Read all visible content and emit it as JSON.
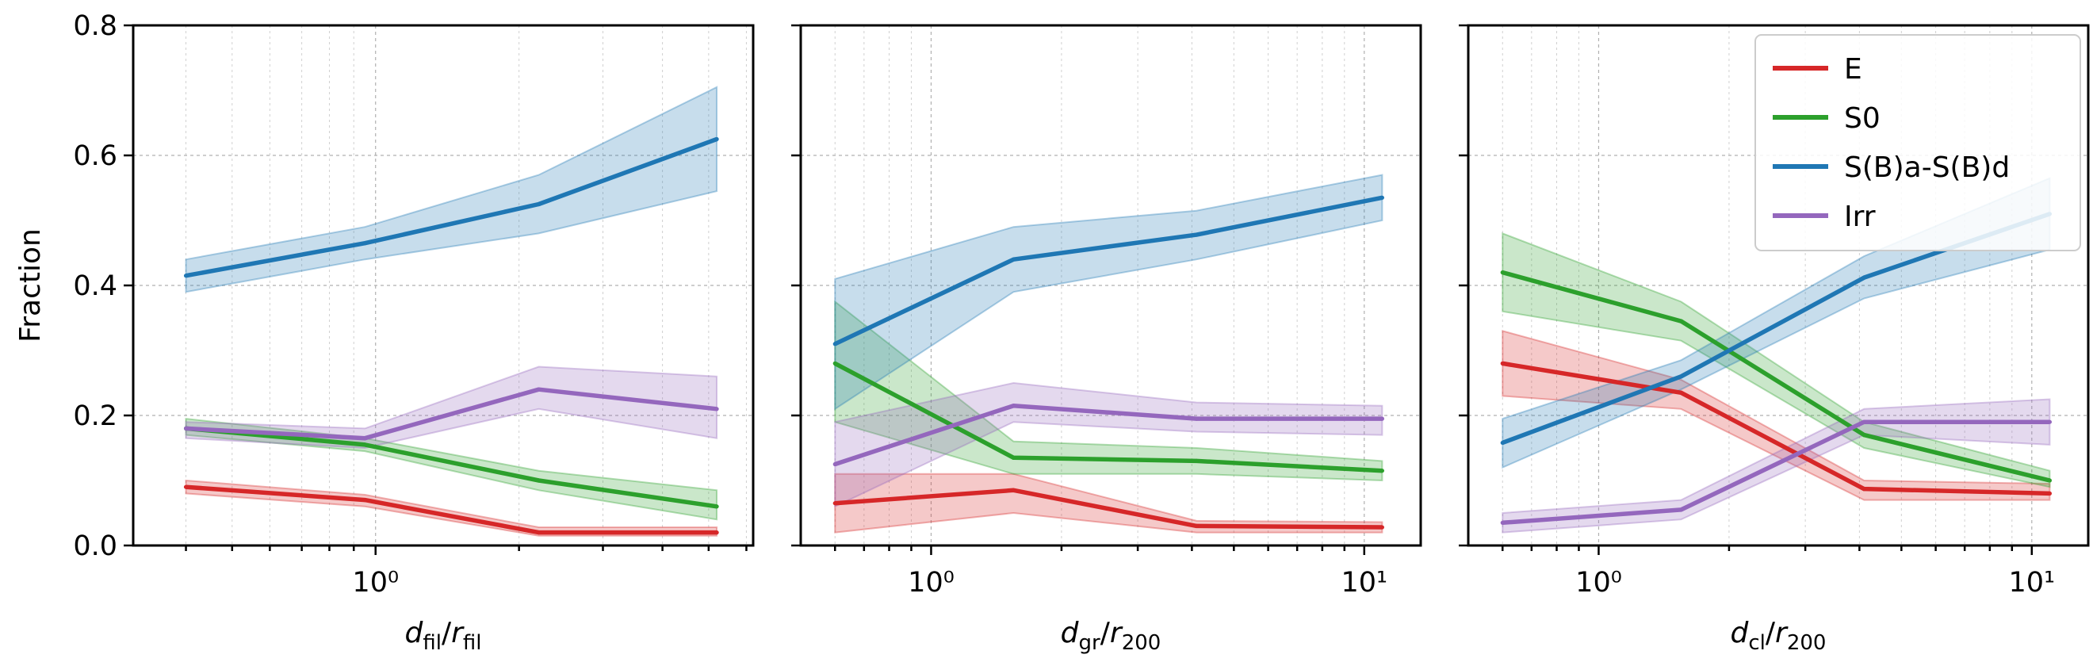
{
  "chart_data": [
    {
      "type": "line",
      "xscale": "log",
      "xlim": [
        0.31,
        6.2
      ],
      "ylim": [
        0.0,
        0.8
      ],
      "xticks": [
        {
          "value": 1,
          "label": "10⁰"
        }
      ],
      "yticks": [
        0.0,
        0.2,
        0.4,
        0.6,
        0.8
      ],
      "ytick_labels": [
        "0.0",
        "0.2",
        "0.4",
        "0.6",
        "0.8"
      ],
      "xlabel": {
        "main": "d",
        "sub": "fil",
        "sep": "/",
        "main2": "r",
        "sub2": "fil"
      },
      "ylabel": "Fraction",
      "x": [
        0.4,
        0.95,
        2.2,
        5.2
      ],
      "series": [
        {
          "name": "E",
          "values": [
            0.09,
            0.07,
            0.02,
            0.02
          ],
          "lower": [
            0.08,
            0.06,
            0.015,
            0.015
          ],
          "upper": [
            0.1,
            0.078,
            0.028,
            0.028
          ]
        },
        {
          "name": "S0",
          "values": [
            0.18,
            0.155,
            0.1,
            0.06
          ],
          "lower": [
            0.17,
            0.145,
            0.085,
            0.04
          ],
          "upper": [
            0.195,
            0.165,
            0.115,
            0.085
          ]
        },
        {
          "name": "S(B)a-S(B)d",
          "values": [
            0.415,
            0.465,
            0.525,
            0.625
          ],
          "lower": [
            0.39,
            0.44,
            0.48,
            0.545
          ],
          "upper": [
            0.44,
            0.49,
            0.57,
            0.705
          ]
        },
        {
          "name": "Irr",
          "values": [
            0.18,
            0.165,
            0.24,
            0.21
          ],
          "lower": [
            0.165,
            0.15,
            0.21,
            0.165
          ],
          "upper": [
            0.19,
            0.18,
            0.275,
            0.26
          ]
        }
      ]
    },
    {
      "type": "line",
      "xscale": "log",
      "xlim": [
        0.5,
        13.5
      ],
      "ylim": [
        0.0,
        0.8
      ],
      "xticks": [
        {
          "value": 1,
          "label": "10⁰"
        },
        {
          "value": 10,
          "label": "10¹"
        }
      ],
      "yticks": [
        0.0,
        0.2,
        0.4,
        0.6,
        0.8
      ],
      "ytick_labels": [],
      "xlabel": {
        "main": "d",
        "sub": "gr",
        "sep": "/",
        "main2": "r",
        "sub2": "200"
      },
      "ylabel": "",
      "x": [
        0.6,
        1.55,
        4.1,
        11.0
      ],
      "series": [
        {
          "name": "E",
          "values": [
            0.065,
            0.085,
            0.03,
            0.028
          ],
          "lower": [
            0.02,
            0.05,
            0.02,
            0.02
          ],
          "upper": [
            0.11,
            0.11,
            0.038,
            0.036
          ]
        },
        {
          "name": "S0",
          "values": [
            0.28,
            0.135,
            0.13,
            0.115
          ],
          "lower": [
            0.19,
            0.11,
            0.11,
            0.1
          ],
          "upper": [
            0.375,
            0.16,
            0.15,
            0.13
          ]
        },
        {
          "name": "S(B)a-S(B)d",
          "values": [
            0.31,
            0.44,
            0.478,
            0.535
          ],
          "lower": [
            0.21,
            0.39,
            0.44,
            0.5
          ],
          "upper": [
            0.41,
            0.49,
            0.515,
            0.57
          ]
        },
        {
          "name": "Irr",
          "values": [
            0.125,
            0.215,
            0.195,
            0.195
          ],
          "lower": [
            0.06,
            0.19,
            0.175,
            0.17
          ],
          "upper": [
            0.19,
            0.25,
            0.22,
            0.215
          ]
        }
      ]
    },
    {
      "type": "line",
      "xscale": "log",
      "xlim": [
        0.5,
        13.5
      ],
      "ylim": [
        0.0,
        0.8
      ],
      "xticks": [
        {
          "value": 1,
          "label": "10⁰"
        },
        {
          "value": 10,
          "label": "10¹"
        }
      ],
      "yticks": [
        0.0,
        0.2,
        0.4,
        0.6,
        0.8
      ],
      "ytick_labels": [],
      "xlabel": {
        "main": "d",
        "sub": "cl",
        "sep": "/",
        "main2": "r",
        "sub2": "200"
      },
      "ylabel": "",
      "x": [
        0.6,
        1.55,
        4.1,
        11.0
      ],
      "legend": {
        "position": "upper-right",
        "entries": [
          "E",
          "S0",
          "S(B)a-S(B)d",
          "Irr"
        ]
      },
      "series": [
        {
          "name": "E",
          "values": [
            0.28,
            0.235,
            0.087,
            0.08
          ],
          "lower": [
            0.23,
            0.21,
            0.07,
            0.07
          ],
          "upper": [
            0.33,
            0.255,
            0.1,
            0.095
          ]
        },
        {
          "name": "S0",
          "values": [
            0.42,
            0.345,
            0.17,
            0.1
          ],
          "lower": [
            0.36,
            0.315,
            0.15,
            0.09
          ],
          "upper": [
            0.48,
            0.375,
            0.19,
            0.115
          ]
        },
        {
          "name": "S(B)a-S(B)d",
          "values": [
            0.158,
            0.26,
            0.412,
            0.51
          ],
          "lower": [
            0.12,
            0.24,
            0.38,
            0.455
          ],
          "upper": [
            0.195,
            0.285,
            0.445,
            0.565
          ]
        },
        {
          "name": "Irr",
          "values": [
            0.035,
            0.055,
            0.19,
            0.19
          ],
          "lower": [
            0.02,
            0.04,
            0.17,
            0.155
          ],
          "upper": [
            0.05,
            0.07,
            0.21,
            0.225
          ]
        }
      ]
    }
  ],
  "colors": {
    "E": "#d62728",
    "S0": "#2ca02c",
    "S(B)a-S(B)d": "#1f77b4",
    "Irr": "#9467bd"
  }
}
